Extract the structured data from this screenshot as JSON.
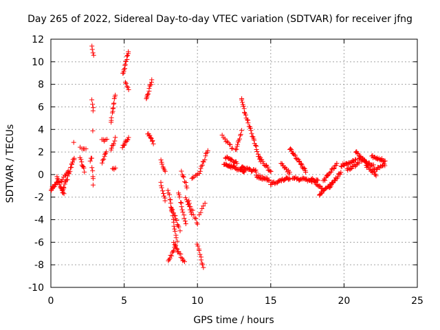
{
  "chart_data": {
    "type": "scatter",
    "title": "Day 265 of 2022, Sidereal Day-to-day VTEC variation (SDTVAR) for receiver jfng",
    "xlabel": "GPS time / hours",
    "ylabel": "SDTVAR / TECUs",
    "xlim": [
      0,
      25
    ],
    "ylim": [
      -10,
      12
    ],
    "xticks": [
      "0",
      "5",
      "10",
      "15",
      "20",
      "25"
    ],
    "yticks": [
      "-10",
      "-8",
      "-6",
      "-4",
      "-2",
      "0",
      "2",
      "4",
      "6",
      "8",
      "10",
      "12"
    ],
    "grid": true,
    "marker": "+",
    "color": "#ff0000",
    "segments": [
      {
        "x0": 0.0,
        "x1": 0.5,
        "y0": -1.4,
        "y1": -0.5,
        "n": 14
      },
      {
        "x0": 0.4,
        "x1": 0.9,
        "y0": -0.3,
        "y1": -1.8,
        "n": 12
      },
      {
        "x0": 0.8,
        "x1": 1.6,
        "y0": -1.5,
        "y1": 1.5,
        "n": 22
      },
      {
        "x0": 0.6,
        "x1": 1.2,
        "y0": -0.8,
        "y1": 0.4,
        "n": 10
      },
      {
        "x0": 1.5,
        "x1": 1.6,
        "y0": 2.8,
        "y1": 2.8,
        "n": 1
      },
      {
        "x0": 2.0,
        "x1": 2.3,
        "y0": 1.4,
        "y1": 0.3,
        "n": 8
      },
      {
        "x0": 2.0,
        "x1": 2.4,
        "y0": 2.3,
        "y1": 2.2,
        "n": 5
      },
      {
        "x0": 2.7,
        "x1": 2.8,
        "y0": 1.2,
        "y1": 1.5,
        "n": 3
      },
      {
        "x0": 2.8,
        "x1": 2.9,
        "y0": 11.3,
        "y1": 10.5,
        "n": 4
      },
      {
        "x0": 2.8,
        "x1": 2.9,
        "y0": 6.6,
        "y1": 5.6,
        "n": 4
      },
      {
        "x0": 2.85,
        "x1": 2.9,
        "y0": 3.9,
        "y1": 3.9,
        "n": 1
      },
      {
        "x0": 2.8,
        "x1": 2.9,
        "y0": 0.6,
        "y1": -0.8,
        "n": 5
      },
      {
        "x0": 3.5,
        "x1": 3.8,
        "y0": 3.0,
        "y1": 3.1,
        "n": 5
      },
      {
        "x0": 3.5,
        "x1": 3.8,
        "y0": 1.0,
        "y1": 2.1,
        "n": 7
      },
      {
        "x0": 4.1,
        "x1": 4.4,
        "y0": 4.7,
        "y1": 7.1,
        "n": 12
      },
      {
        "x0": 4.1,
        "x1": 4.4,
        "y0": 2.2,
        "y1": 3.2,
        "n": 7
      },
      {
        "x0": 4.2,
        "x1": 4.4,
        "y0": 0.5,
        "y1": 0.6,
        "n": 4
      },
      {
        "x0": 4.9,
        "x1": 5.3,
        "y0": 8.9,
        "y1": 10.8,
        "n": 14
      },
      {
        "x0": 5.1,
        "x1": 5.3,
        "y0": 8.3,
        "y1": 7.4,
        "n": 5
      },
      {
        "x0": 4.9,
        "x1": 5.3,
        "y0": 2.4,
        "y1": 3.3,
        "n": 10
      },
      {
        "x0": 6.5,
        "x1": 6.9,
        "y0": 6.6,
        "y1": 8.4,
        "n": 12
      },
      {
        "x0": 6.6,
        "x1": 7.0,
        "y0": 3.7,
        "y1": 2.8,
        "n": 10
      },
      {
        "x0": 7.5,
        "x1": 7.8,
        "y0": 1.4,
        "y1": 0.2,
        "n": 7
      },
      {
        "x0": 7.5,
        "x1": 7.8,
        "y0": -0.8,
        "y1": -2.2,
        "n": 8
      },
      {
        "x0": 8.0,
        "x1": 8.6,
        "y0": -1.3,
        "y1": -5.8,
        "n": 18
      },
      {
        "x0": 8.2,
        "x1": 8.8,
        "y0": -2.8,
        "y1": -4.9,
        "n": 12
      },
      {
        "x0": 8.0,
        "x1": 8.5,
        "y0": -7.7,
        "y1": -6.3,
        "n": 10
      },
      {
        "x0": 8.4,
        "x1": 9.1,
        "y0": -6.1,
        "y1": -7.8,
        "n": 14
      },
      {
        "x0": 8.7,
        "x1": 9.2,
        "y0": -1.6,
        "y1": -4.4,
        "n": 12
      },
      {
        "x0": 8.9,
        "x1": 9.3,
        "y0": 0.3,
        "y1": -1.2,
        "n": 8
      },
      {
        "x0": 9.2,
        "x1": 9.6,
        "y0": -2.0,
        "y1": -3.5,
        "n": 9
      },
      {
        "x0": 9.4,
        "x1": 10.0,
        "y0": -2.3,
        "y1": -4.5,
        "n": 10
      },
      {
        "x0": 9.6,
        "x1": 10.2,
        "y0": -0.4,
        "y1": 0.3,
        "n": 8
      },
      {
        "x0": 10.0,
        "x1": 10.4,
        "y0": -6.1,
        "y1": -8.3,
        "n": 10
      },
      {
        "x0": 10.1,
        "x1": 10.5,
        "y0": -3.6,
        "y1": -2.6,
        "n": 5
      },
      {
        "x0": 10.2,
        "x1": 10.7,
        "y0": 0.5,
        "y1": 2.1,
        "n": 10
      },
      {
        "x0": 11.7,
        "x1": 12.4,
        "y0": 3.4,
        "y1": 2.3,
        "n": 10
      },
      {
        "x0": 11.8,
        "x1": 13.2,
        "y0": 0.9,
        "y1": 0.3,
        "n": 34
      },
      {
        "x0": 11.9,
        "x1": 12.7,
        "y0": 1.5,
        "y1": 1.1,
        "n": 16
      },
      {
        "x0": 12.6,
        "x1": 13.0,
        "y0": 2.1,
        "y1": 3.8,
        "n": 10
      },
      {
        "x0": 13.0,
        "x1": 13.2,
        "y0": 6.8,
        "y1": 5.9,
        "n": 6
      },
      {
        "x0": 13.2,
        "x1": 14.3,
        "y0": 5.6,
        "y1": 1.2,
        "n": 26
      },
      {
        "x0": 13.0,
        "x1": 14.0,
        "y0": 0.6,
        "y1": 0.3,
        "n": 22
      },
      {
        "x0": 14.0,
        "x1": 14.9,
        "y0": -0.1,
        "y1": -0.5,
        "n": 20
      },
      {
        "x0": 14.3,
        "x1": 15.0,
        "y0": 1.4,
        "y1": 0.2,
        "n": 14
      },
      {
        "x0": 15.0,
        "x1": 16.3,
        "y0": -0.8,
        "y1": -0.3,
        "n": 28
      },
      {
        "x0": 15.7,
        "x1": 16.3,
        "y0": 0.9,
        "y1": 0.1,
        "n": 12
      },
      {
        "x0": 16.3,
        "x1": 17.4,
        "y0": 2.3,
        "y1": 0.3,
        "n": 24
      },
      {
        "x0": 16.5,
        "x1": 18.2,
        "y0": -0.3,
        "y1": -0.6,
        "n": 34
      },
      {
        "x0": 17.8,
        "x1": 18.5,
        "y0": -0.4,
        "y1": -1.2,
        "n": 14
      },
      {
        "x0": 18.3,
        "x1": 19.2,
        "y0": -1.8,
        "y1": -0.8,
        "n": 18
      },
      {
        "x0": 18.6,
        "x1": 19.5,
        "y0": -0.6,
        "y1": 0.9,
        "n": 18
      },
      {
        "x0": 19.0,
        "x1": 19.8,
        "y0": -1.1,
        "y1": 0.2,
        "n": 16
      },
      {
        "x0": 19.8,
        "x1": 20.8,
        "y0": 0.8,
        "y1": 1.3,
        "n": 20
      },
      {
        "x0": 20.2,
        "x1": 21.0,
        "y0": 0.4,
        "y1": 1.0,
        "n": 14
      },
      {
        "x0": 20.8,
        "x1": 21.6,
        "y0": 2.0,
        "y1": 0.9,
        "n": 16
      },
      {
        "x0": 21.0,
        "x1": 22.0,
        "y0": 1.4,
        "y1": 0.8,
        "n": 20
      },
      {
        "x0": 21.5,
        "x1": 22.2,
        "y0": 0.8,
        "y1": 0.0,
        "n": 14
      },
      {
        "x0": 21.9,
        "x1": 22.8,
        "y0": 1.6,
        "y1": 1.2,
        "n": 18
      },
      {
        "x0": 22.0,
        "x1": 22.8,
        "y0": 0.4,
        "y1": 0.9,
        "n": 14
      }
    ]
  }
}
